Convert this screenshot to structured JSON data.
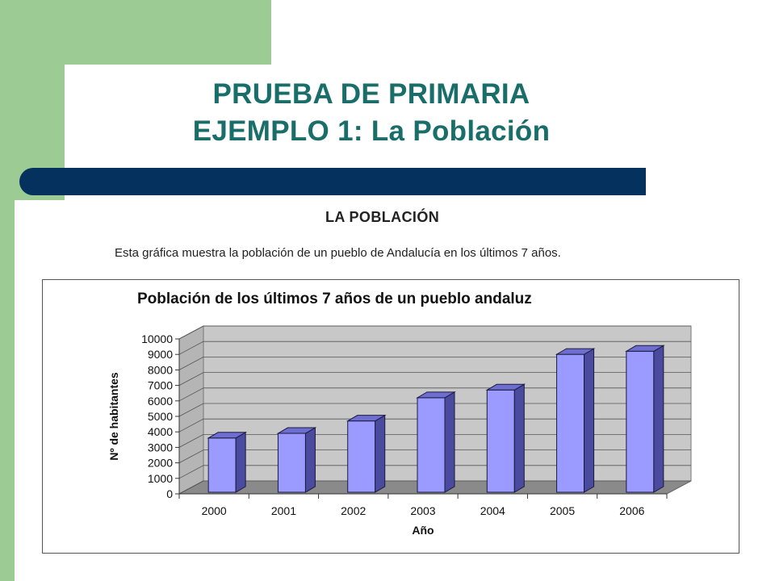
{
  "slide": {
    "title_line1": "PRUEBA DE PRIMARIA",
    "title_line2": "EJEMPLO 1: La Población",
    "heading": "LA POBLACIÓN",
    "subtitle": "Esta gráfica muestra la población de un pueblo de Andalucía en los últimos 7 años.",
    "colors": {
      "green": "#9ccc94",
      "navy": "#04315e",
      "title": "#1a6e6a",
      "bar": "#9b9bff"
    }
  },
  "chart_data": {
    "type": "bar",
    "title": "Población de los últimos 7 años de un pueblo andaluz",
    "xlabel": "Año",
    "ylabel": "Nº de habitantes",
    "categories": [
      "2000",
      "2001",
      "2002",
      "2003",
      "2004",
      "2005",
      "2006"
    ],
    "values": [
      3500,
      3800,
      4600,
      6100,
      6600,
      8900,
      9100
    ],
    "ylim": [
      0,
      10000
    ],
    "yticks": [
      0,
      1000,
      2000,
      3000,
      4000,
      5000,
      6000,
      7000,
      8000,
      9000,
      10000
    ],
    "grid": true,
    "style": "3d"
  }
}
